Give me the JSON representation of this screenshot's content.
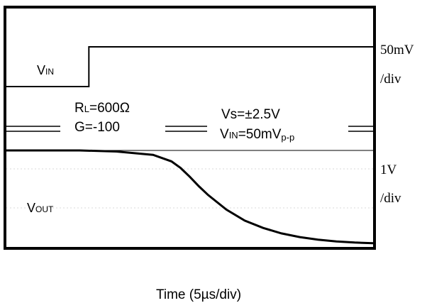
{
  "chart_data": {
    "type": "line",
    "xlabel": "Time (5µs/div)",
    "series": [
      {
        "name": "VIN",
        "x": [
          0,
          4.5,
          4.5,
          20
        ],
        "y": [
          0,
          0,
          1,
          1
        ]
      },
      {
        "name": "VOUT",
        "x": [
          0,
          4,
          6,
          8,
          9,
          9.5,
          10,
          10.5,
          11,
          12,
          13,
          14,
          15,
          16,
          17,
          18,
          19,
          20
        ],
        "y": [
          0,
          0,
          -0.03,
          -0.12,
          -0.3,
          -0.48,
          -0.72,
          -0.98,
          -1.22,
          -1.62,
          -1.92,
          -2.12,
          -2.27,
          -2.37,
          -2.44,
          -2.49,
          -2.52,
          -2.54
        ]
      }
    ],
    "scale_labels": {
      "vin_scale_value": "50mV",
      "vin_scale_unit": "/div",
      "vout_scale_value": "1V",
      "vout_scale_unit": "/div"
    },
    "trace_labels": {
      "vin_main": "V",
      "vin_sub": "IN",
      "vout_main": "V",
      "vout_sub": "OUT"
    },
    "annotations": {
      "rl": {
        "main": "R",
        "sub": "L",
        "rest": "=600Ω"
      },
      "gain": "G=-100",
      "vs": "Vs=±2.5V",
      "vin_cond": {
        "main": "V",
        "sub1": "IN",
        "mid": "=50mV",
        "sub2": "p-p"
      }
    }
  }
}
